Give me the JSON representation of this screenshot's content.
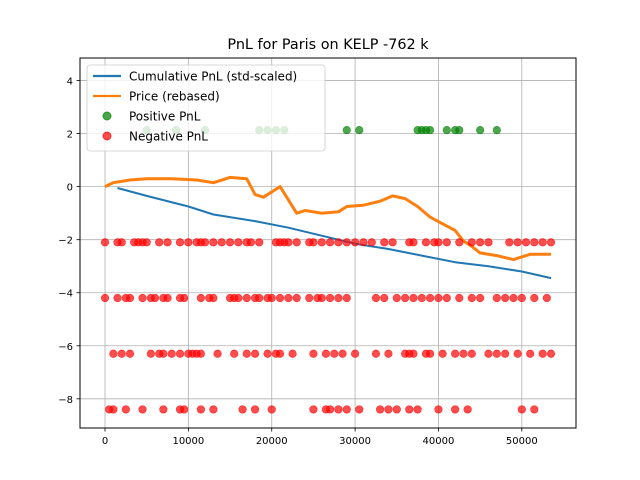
{
  "chart_data": {
    "type": "scatter",
    "title": "PnL for Paris on KELP -762 k",
    "xlabel": "",
    "ylabel": "",
    "xlim": [
      -3000,
      56500
    ],
    "ylim": [
      -9.1,
      4.85
    ],
    "xticks": [
      0,
      10000,
      20000,
      30000,
      40000,
      50000
    ],
    "xtick_labels": [
      "0",
      "10000",
      "20000",
      "30000",
      "40000",
      "50000"
    ],
    "yticks": [
      -8,
      -6,
      -4,
      -2,
      0,
      2,
      4
    ],
    "ytick_labels": [
      "−8",
      "−6",
      "−4",
      "−2",
      "0",
      "2",
      "4"
    ],
    "grid": true,
    "legend_position": "upper-left",
    "series": [
      {
        "name": "Cumulative PnL (std-scaled)",
        "kind": "line",
        "color": "#1f77b4",
        "x": [
          1500,
          5000,
          10000,
          13000,
          18000,
          22000,
          26000,
          30000,
          34000,
          38000,
          42000,
          46000,
          50000,
          53500
        ],
        "y": [
          -0.05,
          -0.35,
          -0.75,
          -1.05,
          -1.3,
          -1.55,
          -1.85,
          -2.15,
          -2.35,
          -2.6,
          -2.85,
          -3.0,
          -3.2,
          -3.45
        ]
      },
      {
        "name": "Price (rebased)",
        "kind": "line",
        "color": "#ff7f0e",
        "x": [
          0,
          1000,
          3000,
          5000,
          8000,
          11000,
          13000,
          15000,
          17000,
          18000,
          19000,
          21000,
          22000,
          23000,
          24000,
          26000,
          28000,
          29000,
          31000,
          33000,
          34500,
          36000,
          37500,
          39000,
          40500,
          42000,
          43000,
          44000,
          45000,
          47000,
          49000,
          51000,
          53500
        ],
        "y": [
          0.0,
          0.15,
          0.25,
          0.3,
          0.3,
          0.25,
          0.15,
          0.35,
          0.3,
          -0.3,
          -0.4,
          0.0,
          -0.5,
          -1.0,
          -0.9,
          -1.0,
          -0.95,
          -0.75,
          -0.7,
          -0.55,
          -0.35,
          -0.45,
          -0.75,
          -1.15,
          -1.4,
          -1.65,
          -2.05,
          -2.25,
          -2.5,
          -2.6,
          -2.75,
          -2.55,
          -2.55
        ]
      },
      {
        "name": "Positive PnL",
        "kind": "scatter",
        "color": "#008000",
        "points": [
          [
            5000,
            2.13
          ],
          [
            8500,
            2.13
          ],
          [
            12000,
            2.13
          ],
          [
            18500,
            2.13
          ],
          [
            19500,
            2.13
          ],
          [
            20500,
            2.13
          ],
          [
            21500,
            2.13
          ],
          [
            29000,
            2.13
          ],
          [
            30500,
            2.13
          ],
          [
            37500,
            2.13
          ],
          [
            38000,
            2.13
          ],
          [
            38500,
            2.13
          ],
          [
            39000,
            2.13
          ],
          [
            41000,
            2.13
          ],
          [
            42000,
            2.13
          ],
          [
            42500,
            2.13
          ],
          [
            45000,
            2.13
          ],
          [
            47000,
            2.13
          ]
        ]
      },
      {
        "name": "Negative PnL",
        "kind": "scatter",
        "color": "#ff0000",
        "points": [
          [
            0,
            -2.1
          ],
          [
            1500,
            -2.1
          ],
          [
            2000,
            -2.1
          ],
          [
            3500,
            -2.1
          ],
          [
            4000,
            -2.1
          ],
          [
            4500,
            -2.1
          ],
          [
            5000,
            -2.1
          ],
          [
            6500,
            -2.1
          ],
          [
            7500,
            -2.1
          ],
          [
            9000,
            -2.1
          ],
          [
            10000,
            -2.1
          ],
          [
            11000,
            -2.1
          ],
          [
            11500,
            -2.1
          ],
          [
            12000,
            -2.1
          ],
          [
            13000,
            -2.1
          ],
          [
            14000,
            -2.1
          ],
          [
            15000,
            -2.1
          ],
          [
            16000,
            -2.1
          ],
          [
            17000,
            -2.1
          ],
          [
            17500,
            -2.1
          ],
          [
            18500,
            -2.1
          ],
          [
            20500,
            -2.1
          ],
          [
            21000,
            -2.1
          ],
          [
            21500,
            -2.1
          ],
          [
            22000,
            -2.1
          ],
          [
            23000,
            -2.1
          ],
          [
            24500,
            -2.1
          ],
          [
            25000,
            -2.1
          ],
          [
            26000,
            -2.1
          ],
          [
            27000,
            -2.1
          ],
          [
            28000,
            -2.1
          ],
          [
            29000,
            -2.1
          ],
          [
            30000,
            -2.1
          ],
          [
            31000,
            -2.1
          ],
          [
            32000,
            -2.1
          ],
          [
            33500,
            -2.1
          ],
          [
            34500,
            -2.1
          ],
          [
            36500,
            -2.1
          ],
          [
            37000,
            -2.1
          ],
          [
            38500,
            -2.1
          ],
          [
            39500,
            -2.1
          ],
          [
            40000,
            -2.1
          ],
          [
            41000,
            -2.1
          ],
          [
            42500,
            -2.1
          ],
          [
            44000,
            -2.1
          ],
          [
            45000,
            -2.1
          ],
          [
            46000,
            -2.1
          ],
          [
            48500,
            -2.1
          ],
          [
            49500,
            -2.1
          ],
          [
            50500,
            -2.1
          ],
          [
            51500,
            -2.1
          ],
          [
            52500,
            -2.1
          ],
          [
            53500,
            -2.1
          ],
          [
            0,
            -4.2
          ],
          [
            1500,
            -4.2
          ],
          [
            2500,
            -4.2
          ],
          [
            3000,
            -4.2
          ],
          [
            4500,
            -4.2
          ],
          [
            5500,
            -4.2
          ],
          [
            6000,
            -4.2
          ],
          [
            7000,
            -4.2
          ],
          [
            7500,
            -4.2
          ],
          [
            9000,
            -4.2
          ],
          [
            9500,
            -4.2
          ],
          [
            11500,
            -4.2
          ],
          [
            12500,
            -4.2
          ],
          [
            13000,
            -4.2
          ],
          [
            15000,
            -4.2
          ],
          [
            15500,
            -4.2
          ],
          [
            16000,
            -4.2
          ],
          [
            17000,
            -4.2
          ],
          [
            18000,
            -4.2
          ],
          [
            18500,
            -4.2
          ],
          [
            19500,
            -4.2
          ],
          [
            20000,
            -4.2
          ],
          [
            21000,
            -4.2
          ],
          [
            22000,
            -4.2
          ],
          [
            23000,
            -4.2
          ],
          [
            24500,
            -4.2
          ],
          [
            25500,
            -4.2
          ],
          [
            26000,
            -4.2
          ],
          [
            27000,
            -4.2
          ],
          [
            28000,
            -4.2
          ],
          [
            29000,
            -4.2
          ],
          [
            32500,
            -4.2
          ],
          [
            33500,
            -4.2
          ],
          [
            35000,
            -4.2
          ],
          [
            36000,
            -4.2
          ],
          [
            37000,
            -4.2
          ],
          [
            38000,
            -4.2
          ],
          [
            39000,
            -4.2
          ],
          [
            40000,
            -4.2
          ],
          [
            41000,
            -4.2
          ],
          [
            42500,
            -4.2
          ],
          [
            44000,
            -4.2
          ],
          [
            45000,
            -4.2
          ],
          [
            47000,
            -4.2
          ],
          [
            48000,
            -4.2
          ],
          [
            49000,
            -4.2
          ],
          [
            50000,
            -4.2
          ],
          [
            51500,
            -4.2
          ],
          [
            53000,
            -4.2
          ],
          [
            1000,
            -6.3
          ],
          [
            2000,
            -6.3
          ],
          [
            3000,
            -6.3
          ],
          [
            5500,
            -6.3
          ],
          [
            6500,
            -6.3
          ],
          [
            7000,
            -6.3
          ],
          [
            8000,
            -6.3
          ],
          [
            9000,
            -6.3
          ],
          [
            10000,
            -6.3
          ],
          [
            10500,
            -6.3
          ],
          [
            11000,
            -6.3
          ],
          [
            11500,
            -6.3
          ],
          [
            13500,
            -6.3
          ],
          [
            15500,
            -6.3
          ],
          [
            17000,
            -6.3
          ],
          [
            18000,
            -6.3
          ],
          [
            19500,
            -6.3
          ],
          [
            20500,
            -6.3
          ],
          [
            21000,
            -6.3
          ],
          [
            22500,
            -6.3
          ],
          [
            25000,
            -6.3
          ],
          [
            26500,
            -6.3
          ],
          [
            27500,
            -6.3
          ],
          [
            28500,
            -6.3
          ],
          [
            30000,
            -6.3
          ],
          [
            32500,
            -6.3
          ],
          [
            34000,
            -6.3
          ],
          [
            36000,
            -6.3
          ],
          [
            36500,
            -6.3
          ],
          [
            37000,
            -6.3
          ],
          [
            38500,
            -6.3
          ],
          [
            39000,
            -6.3
          ],
          [
            40500,
            -6.3
          ],
          [
            42000,
            -6.3
          ],
          [
            43000,
            -6.3
          ],
          [
            44000,
            -6.3
          ],
          [
            46000,
            -6.3
          ],
          [
            47000,
            -6.3
          ],
          [
            48000,
            -6.3
          ],
          [
            49500,
            -6.3
          ],
          [
            51000,
            -6.3
          ],
          [
            52500,
            -6.3
          ],
          [
            53500,
            -6.3
          ],
          [
            500,
            -8.4
          ],
          [
            1000,
            -8.4
          ],
          [
            2500,
            -8.4
          ],
          [
            4500,
            -8.4
          ],
          [
            7000,
            -8.4
          ],
          [
            9000,
            -8.4
          ],
          [
            9500,
            -8.4
          ],
          [
            11500,
            -8.4
          ],
          [
            13000,
            -8.4
          ],
          [
            16500,
            -8.4
          ],
          [
            18000,
            -8.4
          ],
          [
            20000,
            -8.4
          ],
          [
            25000,
            -8.4
          ],
          [
            26500,
            -8.4
          ],
          [
            27000,
            -8.4
          ],
          [
            28000,
            -8.4
          ],
          [
            29000,
            -8.4
          ],
          [
            30500,
            -8.4
          ],
          [
            33000,
            -8.4
          ],
          [
            34000,
            -8.4
          ],
          [
            35000,
            -8.4
          ],
          [
            36500,
            -8.4
          ],
          [
            37500,
            -8.4
          ],
          [
            40000,
            -8.4
          ],
          [
            42000,
            -8.4
          ],
          [
            43500,
            -8.4
          ],
          [
            50000,
            -8.4
          ],
          [
            51500,
            -8.4
          ]
        ]
      }
    ]
  }
}
